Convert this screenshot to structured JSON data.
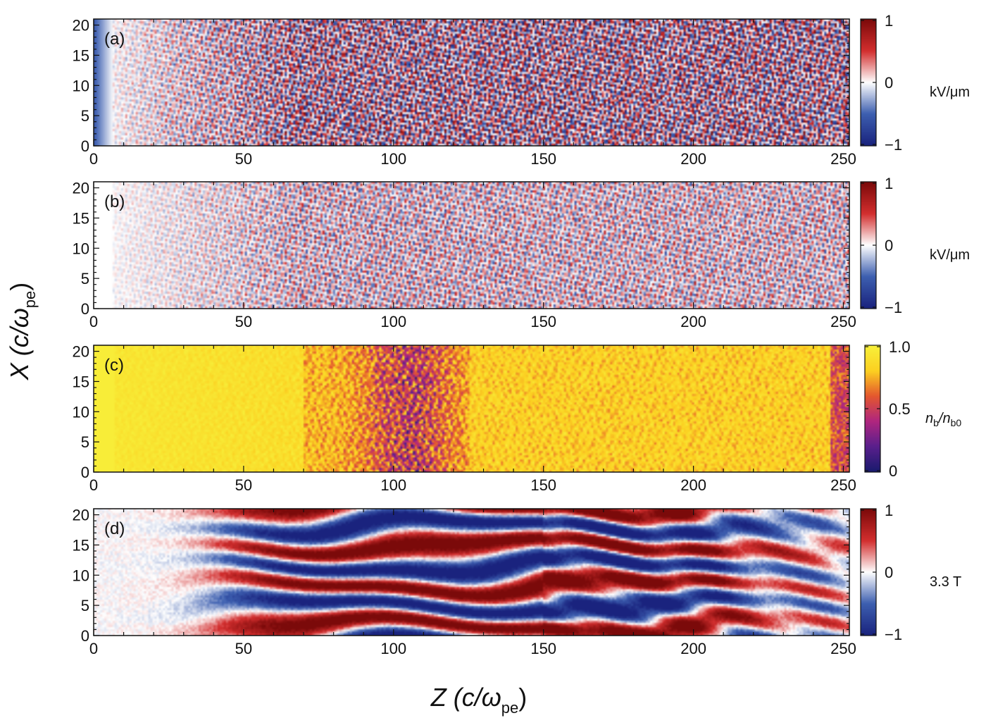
{
  "chart_data": {
    "type": "heatmap",
    "xlabel": {
      "main": "Z (c/ω",
      "sub": "pe",
      "close": ")"
    },
    "ylabel": {
      "main": "X (c/ω",
      "sub": "pe",
      "close": ")"
    },
    "panels": [
      {
        "label": "(a)",
        "colormap": "diverging",
        "pattern": "fine-E",
        "strength": 1.0,
        "xlim": [
          0,
          252
        ],
        "ylim": [
          0,
          21
        ],
        "x_ticks": [
          "0",
          "50",
          "100",
          "150",
          "200",
          "250"
        ],
        "y_ticks": [
          "0",
          "5",
          "10",
          "15",
          "20"
        ],
        "colorbar": {
          "ticks": [
            "1",
            "0",
            "−1"
          ],
          "unit": "kV/μm",
          "unit_sub": ""
        }
      },
      {
        "label": "(b)",
        "colormap": "diverging",
        "pattern": "fine-E",
        "strength": 0.55,
        "xlim": [
          0,
          252
        ],
        "ylim": [
          0,
          21
        ],
        "x_ticks": [
          "0",
          "50",
          "100",
          "150",
          "200",
          "250"
        ],
        "y_ticks": [
          "0",
          "5",
          "10",
          "15",
          "20"
        ],
        "colorbar": {
          "ticks": [
            "1",
            "0",
            "−1"
          ],
          "unit": "kV/μm",
          "unit_sub": ""
        }
      },
      {
        "label": "(c)",
        "colormap": "plasma",
        "pattern": "density",
        "strength": 1.0,
        "xlim": [
          0,
          252
        ],
        "ylim": [
          0,
          21
        ],
        "x_ticks": [
          "0",
          "50",
          "100",
          "150",
          "200",
          "250"
        ],
        "y_ticks": [
          "0",
          "5",
          "10",
          "15",
          "20"
        ],
        "colorbar": {
          "ticks": [
            "1.0",
            "0.5",
            "0"
          ],
          "unit": "n",
          "unit_sub": "b",
          "unit_mid": "/n",
          "unit_sub2": "b0"
        }
      },
      {
        "label": "(d)",
        "colormap": "diverging",
        "pattern": "filament-B",
        "strength": 1.0,
        "xlim": [
          0,
          252
        ],
        "ylim": [
          0,
          21
        ],
        "x_ticks": [
          "0",
          "50",
          "100",
          "150",
          "200",
          "250"
        ],
        "y_ticks": [
          "0",
          "5",
          "10",
          "15",
          "20"
        ],
        "colorbar": {
          "ticks": [
            "1",
            "0",
            "−1"
          ],
          "unit": "3.3 T",
          "unit_sub": ""
        }
      }
    ]
  },
  "colors": {
    "diverging": [
      "#1a237e",
      "#3d5fb0",
      "#ffffff",
      "#d32f2f",
      "#7b0a0a"
    ],
    "plasma": [
      "#1a1a6e",
      "#5a1f8c",
      "#b0267f",
      "#e4572e",
      "#fcd021",
      "#f7f03a"
    ]
  }
}
